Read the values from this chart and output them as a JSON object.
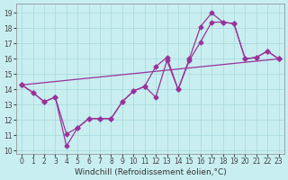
{
  "xlabel": "Windchill (Refroidissement éolien,°C)",
  "bg_color": "#c8eef0",
  "line_color": "#993399",
  "xlim": [
    -0.5,
    23.5
  ],
  "ylim": [
    9.8,
    19.6
  ],
  "xticks": [
    0,
    1,
    2,
    3,
    4,
    5,
    6,
    7,
    8,
    9,
    10,
    11,
    12,
    13,
    14,
    15,
    16,
    17,
    18,
    19,
    20,
    21,
    22,
    23
  ],
  "yticks": [
    10,
    11,
    12,
    13,
    14,
    15,
    16,
    17,
    18,
    19
  ],
  "grid_color": "#a8d8dc",
  "linewidth": 0.9,
  "marker": "D",
  "marker_size": 2.5,
  "tick_fontsize": 5.5,
  "label_fontsize": 6.5,
  "line1_x": [
    0,
    1,
    2,
    3,
    4,
    5,
    6,
    7,
    8,
    9,
    10,
    11,
    12,
    13,
    14,
    15,
    16,
    17,
    18,
    19,
    20,
    21,
    22,
    23
  ],
  "line1_y": [
    14.3,
    13.8,
    13.2,
    13.5,
    11.1,
    11.5,
    12.1,
    12.1,
    12.1,
    13.2,
    13.9,
    14.2,
    15.5,
    16.1,
    14.0,
    16.0,
    18.1,
    19.0,
    18.4,
    18.3,
    16.0,
    16.1,
    16.5,
    16.0
  ],
  "line2_x": [
    0,
    1,
    2,
    3,
    4,
    5,
    6,
    7,
    8,
    9,
    10,
    11,
    12,
    13,
    14,
    15,
    16,
    17,
    18,
    19,
    20,
    21,
    22,
    23
  ],
  "line2_y": [
    14.3,
    13.8,
    13.2,
    13.5,
    10.3,
    11.5,
    12.1,
    12.1,
    12.1,
    13.2,
    13.9,
    14.2,
    13.5,
    15.9,
    14.0,
    15.9,
    17.1,
    18.4,
    18.4,
    18.3,
    16.0,
    16.1,
    16.5,
    16.0
  ],
  "line3_x": [
    0,
    23
  ],
  "line3_y": [
    14.3,
    16.0
  ]
}
